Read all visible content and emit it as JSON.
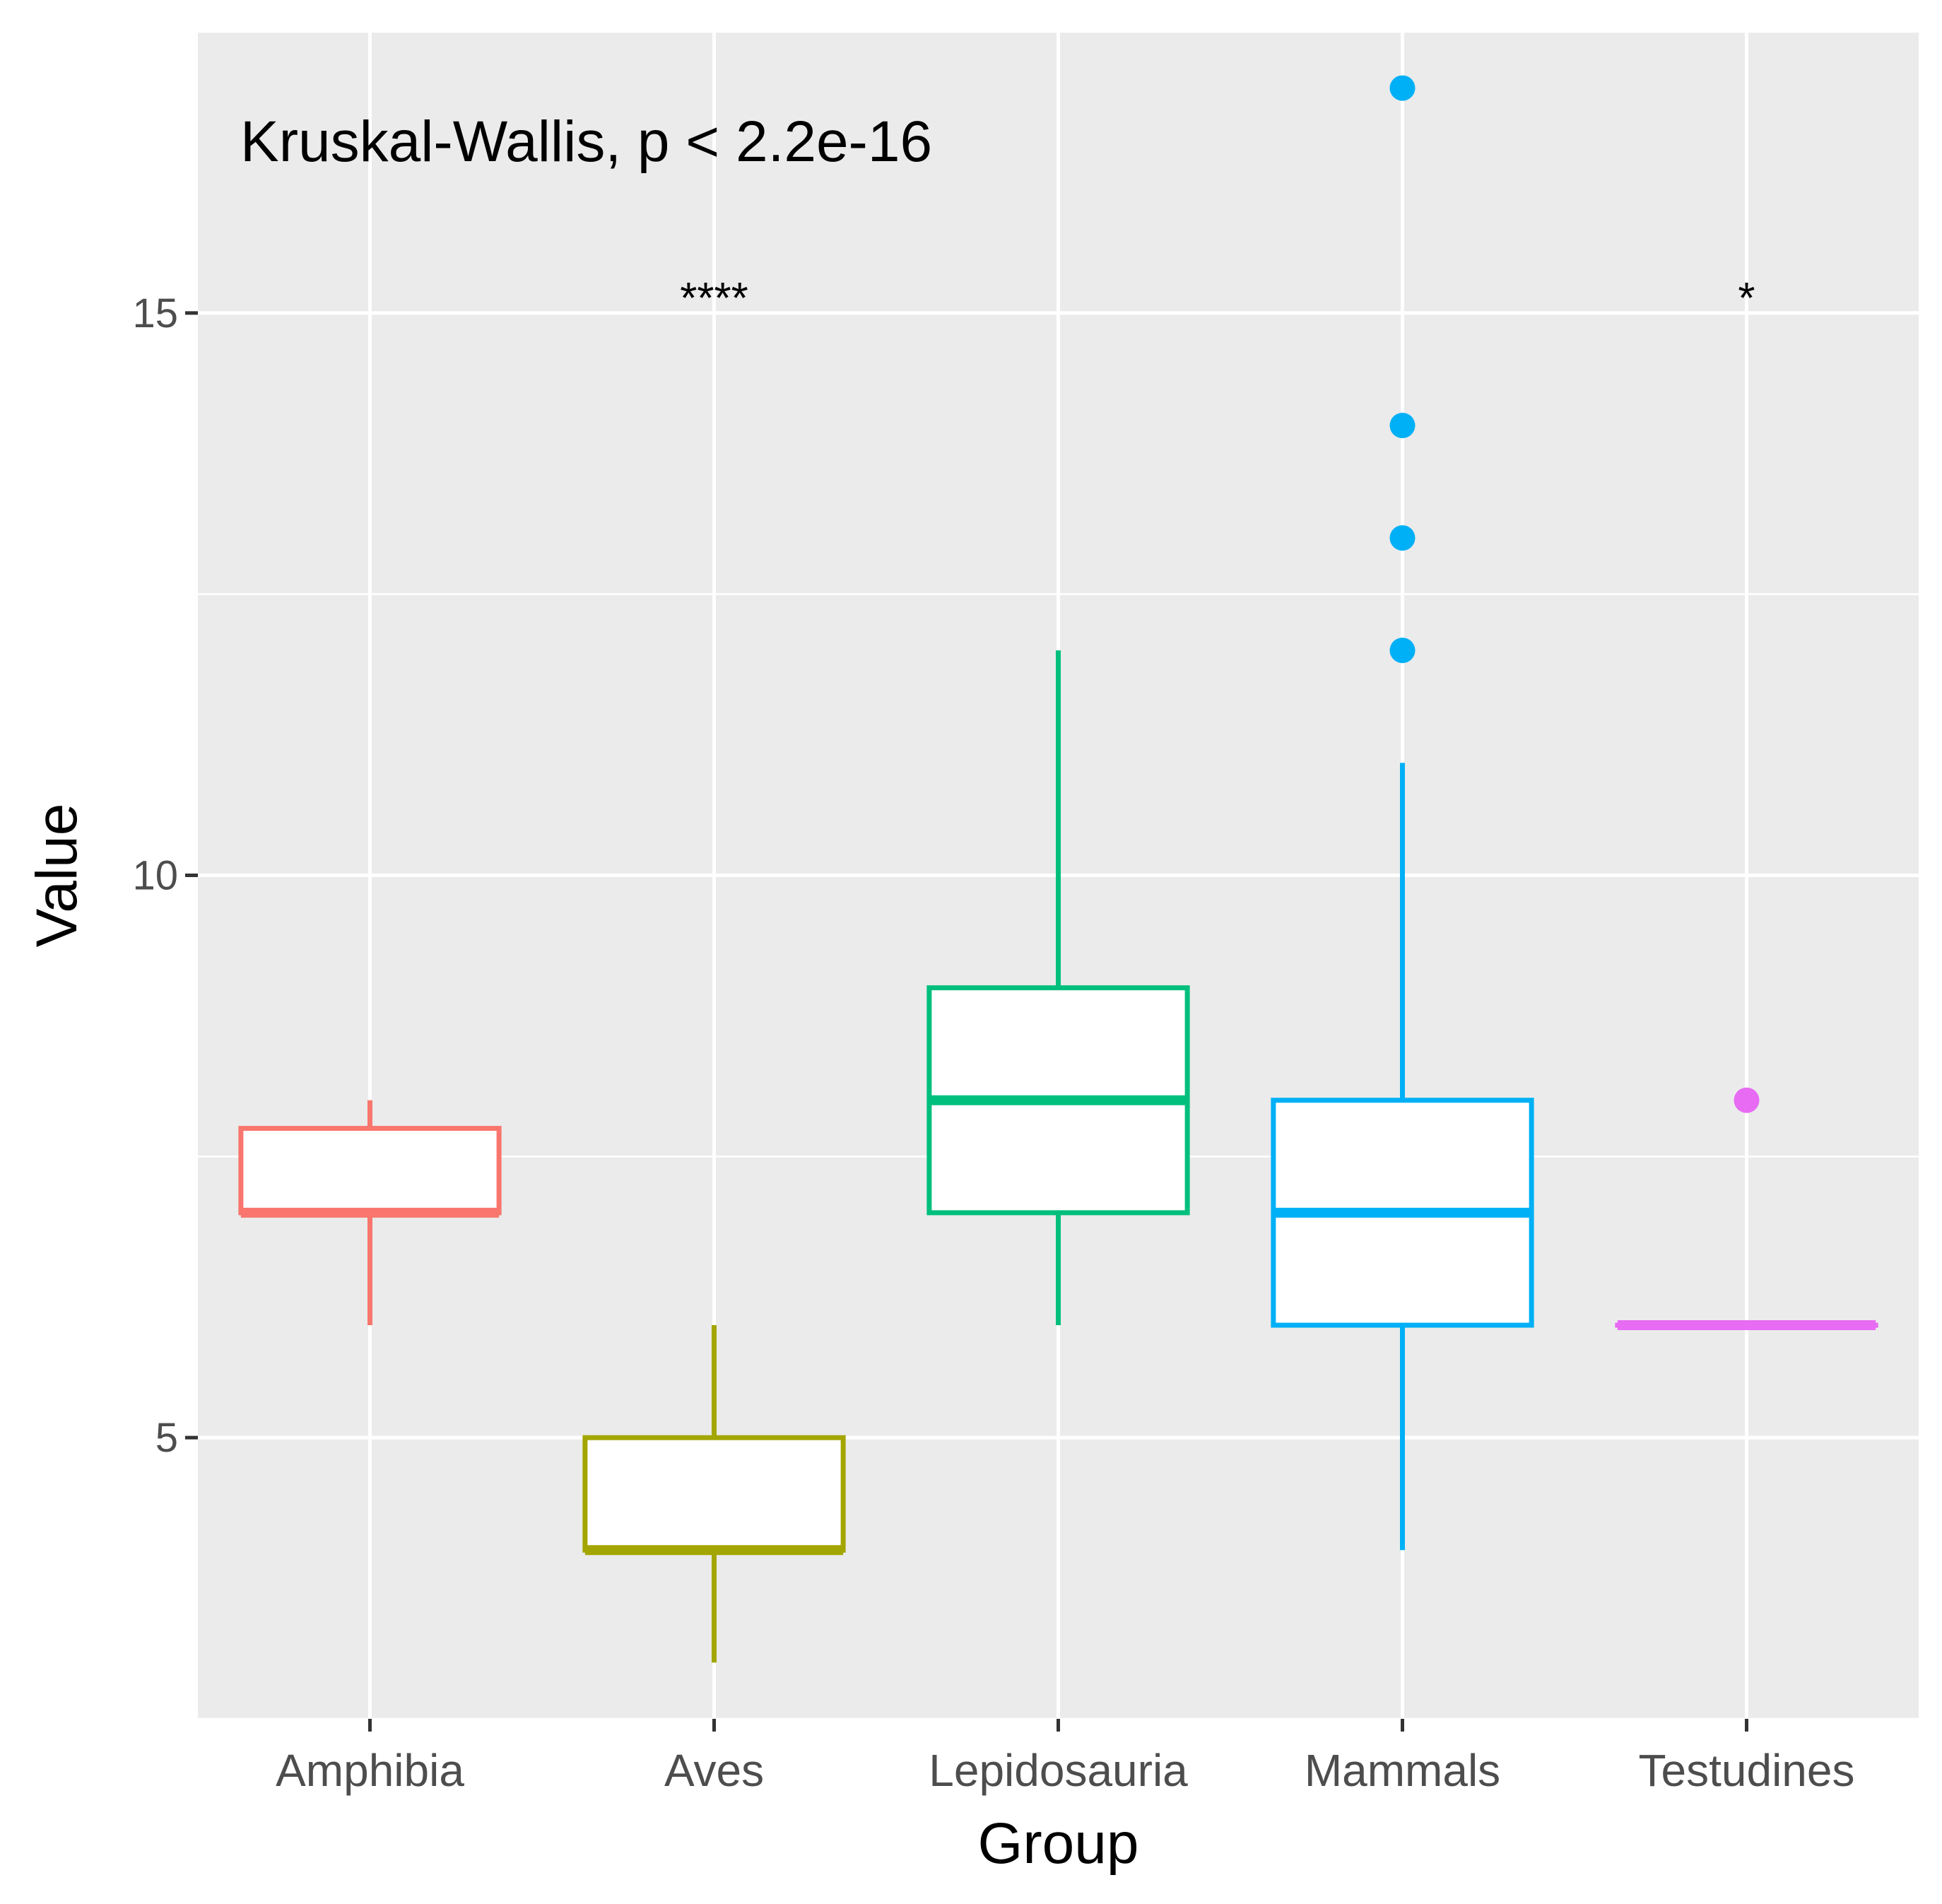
{
  "chart_data": {
    "type": "box",
    "title": "",
    "xlabel": "Group",
    "ylabel": "Value",
    "ylim": [
      2.5,
      17.5
    ],
    "y_ticks": [
      5,
      10,
      15
    ],
    "grid": true,
    "legend": "none",
    "annotation": "Kruskal-Wallis, p < 2.2e-16",
    "categories": [
      "Amphibia",
      "Aves",
      "Lepidosauria",
      "Mammals",
      "Testudines"
    ],
    "boxes": [
      {
        "group": "Amphibia",
        "color": "#F8766D",
        "whisker_low": 6,
        "q1": 7,
        "median": 7,
        "q3": 7.75,
        "whisker_high": 8,
        "outliers": [],
        "sig": ""
      },
      {
        "group": "Aves",
        "color": "#A3A500",
        "whisker_low": 3,
        "q1": 4,
        "median": 4,
        "q3": 5,
        "whisker_high": 6,
        "outliers": [],
        "sig": "****"
      },
      {
        "group": "Lepidosauria",
        "color": "#00BF7D",
        "whisker_low": 6,
        "q1": 7,
        "median": 8,
        "q3": 9,
        "whisker_high": 12,
        "outliers": [],
        "sig": ""
      },
      {
        "group": "Mammals",
        "color": "#00B0F6",
        "whisker_low": 4,
        "q1": 6,
        "median": 7,
        "q3": 8,
        "whisker_high": 11,
        "outliers": [
          12,
          13,
          14,
          17
        ],
        "sig": ""
      },
      {
        "group": "Testudines",
        "color": "#E76BF3",
        "whisker_low": 6,
        "q1": 6,
        "median": 6,
        "q3": 6,
        "whisker_high": 6,
        "outliers": [
          8
        ],
        "sig": "*"
      }
    ],
    "sig_label_y": 15.2
  }
}
